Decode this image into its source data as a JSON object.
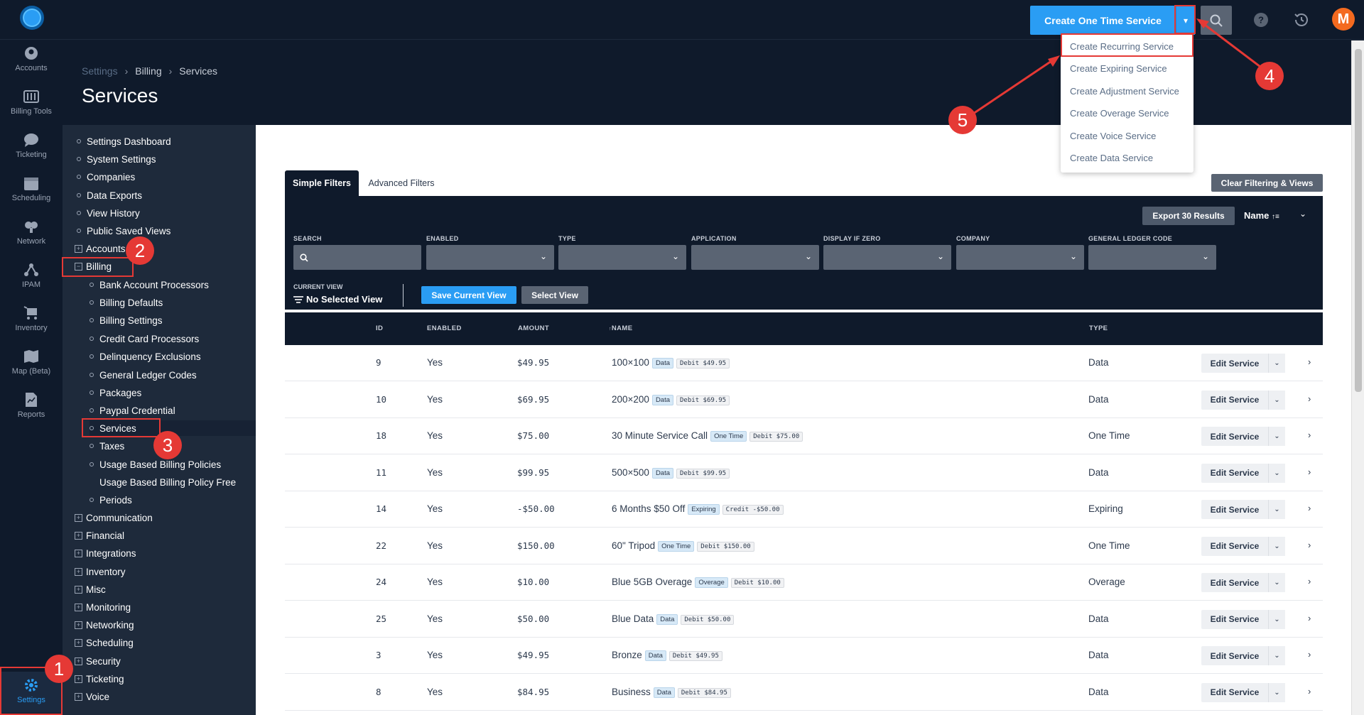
{
  "topbar": {
    "create_button": "Create One Time Service",
    "icons": [
      "logo-icon",
      "search-icon",
      "help-icon",
      "history-icon"
    ],
    "avatar_letter": "M"
  },
  "rail": [
    {
      "label": "Accounts",
      "icon": "person-icon"
    },
    {
      "label": "Billing Tools",
      "icon": "calculator-icon"
    },
    {
      "label": "Ticketing",
      "icon": "chat-bubble-icon"
    },
    {
      "label": "Scheduling",
      "icon": "calendar-icon"
    },
    {
      "label": "Network",
      "icon": "network-icon"
    },
    {
      "label": "IPAM",
      "icon": "ip-tree-icon"
    },
    {
      "label": "Inventory",
      "icon": "cart-icon"
    },
    {
      "label": "Map (Beta)",
      "icon": "map-icon"
    },
    {
      "label": "Reports",
      "icon": "report-icon"
    },
    {
      "label": "Settings",
      "icon": "gear-icon"
    }
  ],
  "breadcrumb": [
    "Settings",
    "Billing",
    "Services"
  ],
  "page_title": "Services",
  "subnav": {
    "top_items": [
      "Settings Dashboard",
      "System Settings",
      "Companies",
      "Data Exports",
      "View History",
      "Public Saved Views"
    ],
    "accounts": "Accounts",
    "billing": "Billing",
    "billing_children": [
      "Bank Account Processors",
      "Billing Defaults",
      "Billing Settings",
      "Credit Card Processors",
      "Delinquency Exclusions",
      "General Ledger Codes",
      "Packages",
      "Paypal Credential",
      "Services",
      "Taxes",
      "Usage Based Billing Policies",
      "Usage Based Billing Policy Free",
      "Periods"
    ],
    "groups": [
      "Communication",
      "Financial",
      "Integrations",
      "Inventory",
      "Misc",
      "Monitoring",
      "Networking",
      "Scheduling",
      "Security",
      "Ticketing",
      "Voice"
    ]
  },
  "filters": {
    "tab_simple": "Simple Filters",
    "tab_advanced": "Advanced Filters",
    "clear_button": "Clear Filtering & Views",
    "export_button": "Export 30 Results",
    "sort_label": "Name",
    "labels": [
      "SEARCH",
      "ENABLED",
      "TYPE",
      "APPLICATION",
      "DISPLAY IF ZERO",
      "COMPANY",
      "GENERAL LEDGER CODE"
    ],
    "current_view_label": "CURRENT VIEW",
    "current_view_value": "No Selected View",
    "save_view_button": "Save Current View",
    "select_view_button": "Select View"
  },
  "table": {
    "headers": [
      "ID",
      "ENABLED",
      "AMOUNT",
      "NAME",
      "TYPE"
    ],
    "edit_label": "Edit Service",
    "rows": [
      {
        "id": "9",
        "enabled": "Yes",
        "amount": "$49.95",
        "name": "100×100",
        "badge": "Data",
        "amount_badge": "Debit $49.95",
        "type": "Data"
      },
      {
        "id": "10",
        "enabled": "Yes",
        "amount": "$69.95",
        "name": "200×200",
        "badge": "Data",
        "amount_badge": "Debit $69.95",
        "type": "Data"
      },
      {
        "id": "18",
        "enabled": "Yes",
        "amount": "$75.00",
        "name": "30 Minute Service Call",
        "badge": "One Time",
        "amount_badge": "Debit $75.00",
        "type": "One Time"
      },
      {
        "id": "11",
        "enabled": "Yes",
        "amount": "$99.95",
        "name": "500×500",
        "badge": "Data",
        "amount_badge": "Debit $99.95",
        "type": "Data"
      },
      {
        "id": "14",
        "enabled": "Yes",
        "amount": "-$50.00",
        "name": "6 Months $50 Off",
        "badge": "Expiring",
        "amount_badge": "Credit -$50.00",
        "type": "Expiring"
      },
      {
        "id": "22",
        "enabled": "Yes",
        "amount": "$150.00",
        "name": "60\" Tripod",
        "badge": "One Time",
        "amount_badge": "Debit $150.00",
        "type": "One Time"
      },
      {
        "id": "24",
        "enabled": "Yes",
        "amount": "$10.00",
        "name": "Blue 5GB Overage",
        "badge": "Overage",
        "amount_badge": "Debit $10.00",
        "type": "Overage"
      },
      {
        "id": "25",
        "enabled": "Yes",
        "amount": "$50.00",
        "name": "Blue Data",
        "badge": "Data",
        "amount_badge": "Debit $50.00",
        "type": "Data"
      },
      {
        "id": "3",
        "enabled": "Yes",
        "amount": "$49.95",
        "name": "Bronze",
        "badge": "Data",
        "amount_badge": "Debit $49.95",
        "type": "Data"
      },
      {
        "id": "8",
        "enabled": "Yes",
        "amount": "$84.95",
        "name": "Business",
        "badge": "Data",
        "amount_badge": "Debit $84.95",
        "type": "Data"
      }
    ]
  },
  "dropdown": [
    "Create Recurring Service",
    "Create Expiring Service",
    "Create Adjustment Service",
    "Create Overage Service",
    "Create Voice Service",
    "Create Data Service"
  ],
  "annotations": [
    "1",
    "2",
    "3",
    "4",
    "5"
  ],
  "colors": {
    "accent": "#2a9df4",
    "navy": "#0f1a2b",
    "annotation": "#e53935"
  }
}
